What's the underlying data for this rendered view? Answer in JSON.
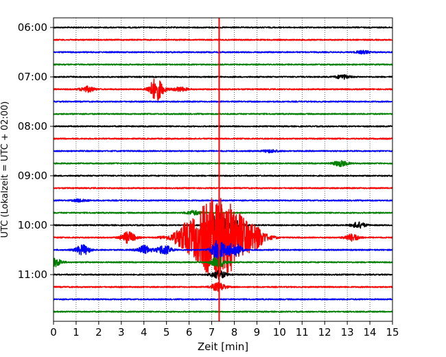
{
  "chart_data": {
    "type": "line",
    "xlabel": "Zeit  [min]",
    "ylabel": "UTC (Lokalzeit = UTC + 02:00)",
    "xlim": [
      0,
      15
    ],
    "x_ticks": [
      0,
      1,
      2,
      3,
      4,
      5,
      6,
      7,
      8,
      9,
      10,
      11,
      12,
      13,
      14,
      15
    ],
    "y_ticks": [
      "06:00",
      "07:00",
      "08:00",
      "09:00",
      "10:00",
      "11:00"
    ],
    "grid": "vertical dotted",
    "trace_interval_minutes": 15,
    "trace_colors": [
      "#000000",
      "#ff0000",
      "#0000ff",
      "#008000"
    ],
    "traces": [
      {
        "time": "06:00",
        "color": "#000000",
        "events": []
      },
      {
        "time": "06:15",
        "color": "#ff0000",
        "events": []
      },
      {
        "time": "06:30",
        "color": "#0000ff",
        "events": [
          {
            "min": 13.7,
            "amp": 0.2
          }
        ]
      },
      {
        "time": "06:45",
        "color": "#008000",
        "events": []
      },
      {
        "time": "07:00",
        "color": "#000000",
        "events": [
          {
            "min": 12.8,
            "amp": 0.3
          }
        ]
      },
      {
        "time": "07:15",
        "color": "#ff0000",
        "events": [
          {
            "min": 4.55,
            "amp": 1.6
          },
          {
            "min": 1.5,
            "amp": 0.4
          },
          {
            "min": 5.6,
            "amp": 0.3
          }
        ]
      },
      {
        "time": "07:30",
        "color": "#0000ff",
        "events": []
      },
      {
        "time": "07:45",
        "color": "#008000",
        "events": []
      },
      {
        "time": "08:00",
        "color": "#000000",
        "events": []
      },
      {
        "time": "08:15",
        "color": "#ff0000",
        "events": []
      },
      {
        "time": "08:30",
        "color": "#0000ff",
        "events": [
          {
            "min": 9.6,
            "amp": 0.2
          }
        ]
      },
      {
        "time": "08:45",
        "color": "#008000",
        "events": [
          {
            "min": 12.7,
            "amp": 0.4
          }
        ]
      },
      {
        "time": "09:00",
        "color": "#000000",
        "events": []
      },
      {
        "time": "09:15",
        "color": "#ff0000",
        "events": []
      },
      {
        "time": "09:30",
        "color": "#0000ff",
        "events": [
          {
            "min": 1.2,
            "amp": 0.2
          }
        ]
      },
      {
        "time": "09:45",
        "color": "#008000",
        "events": [
          {
            "min": 6.2,
            "amp": 0.3
          }
        ]
      },
      {
        "time": "10:00",
        "color": "#000000",
        "events": [
          {
            "min": 7.3,
            "amp": 1.8
          },
          {
            "min": 8.0,
            "amp": 0.8
          },
          {
            "min": 13.5,
            "amp": 0.4
          }
        ]
      },
      {
        "time": "10:15",
        "color": "#ff0000",
        "events": [
          {
            "min": 7.3,
            "amp": 6.0
          },
          {
            "min": 3.3,
            "amp": 0.8
          },
          {
            "min": 5.7,
            "amp": 0.6
          },
          {
            "min": 9.0,
            "amp": 0.7
          },
          {
            "min": 13.2,
            "amp": 0.5
          }
        ]
      },
      {
        "time": "10:30",
        "color": "#0000ff",
        "events": [
          {
            "min": 7.3,
            "amp": 1.4
          },
          {
            "min": 1.3,
            "amp": 0.7
          },
          {
            "min": 4.0,
            "amp": 0.6
          },
          {
            "min": 4.9,
            "amp": 0.7
          },
          {
            "min": 8.0,
            "amp": 1.0
          }
        ]
      },
      {
        "time": "10:45",
        "color": "#008000",
        "events": [
          {
            "min": 0.05,
            "amp": 0.6
          },
          {
            "min": 7.3,
            "amp": 0.8
          }
        ]
      },
      {
        "time": "11:00",
        "color": "#000000",
        "events": [
          {
            "min": 7.3,
            "amp": 0.6
          }
        ]
      },
      {
        "time": "11:15",
        "color": "#ff0000",
        "events": [
          {
            "min": 7.3,
            "amp": 0.6
          }
        ]
      },
      {
        "time": "11:30",
        "color": "#0000ff",
        "events": []
      },
      {
        "time": "11:45",
        "color": "#008000",
        "events": []
      }
    ]
  }
}
